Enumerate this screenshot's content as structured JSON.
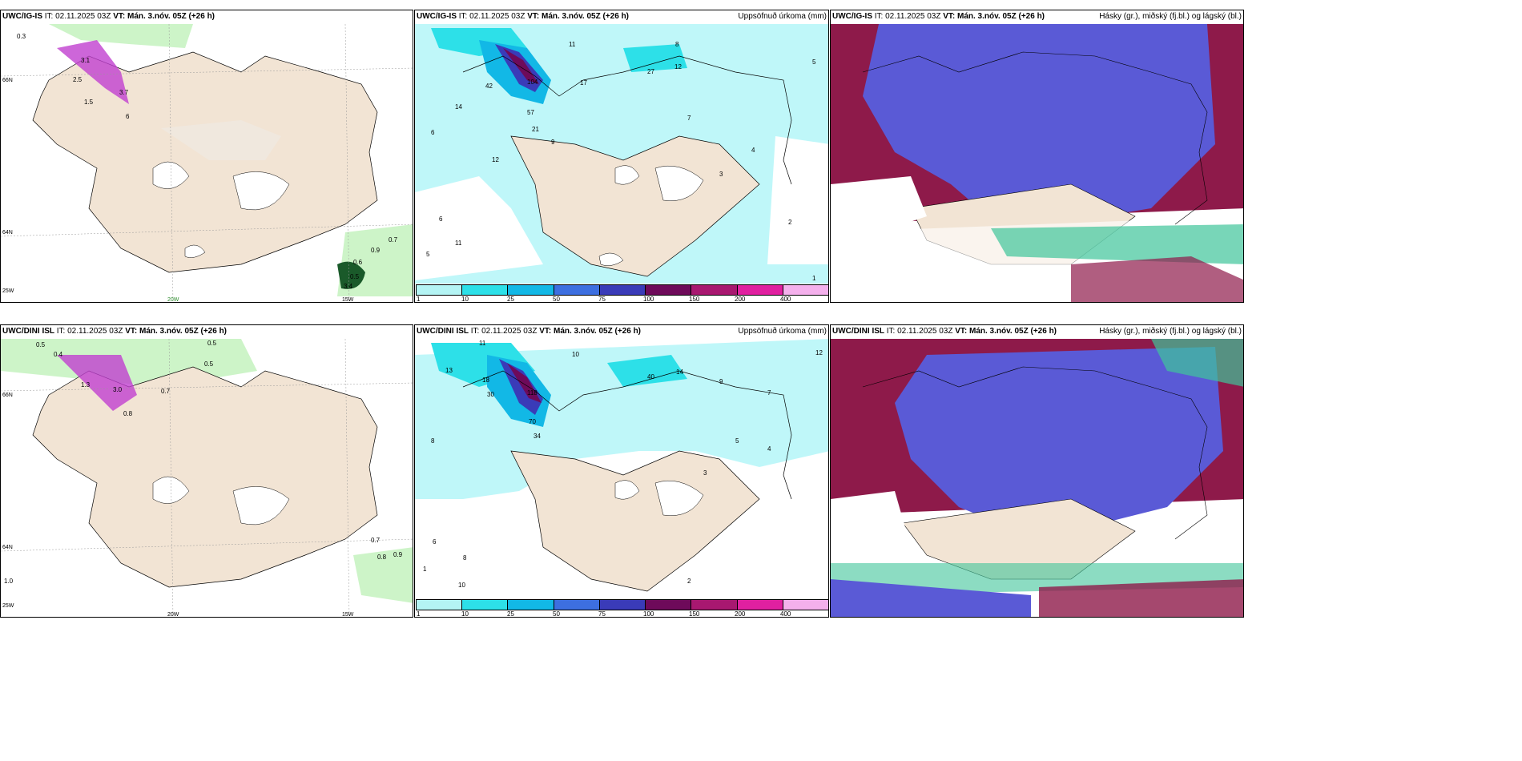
{
  "rows": [
    {
      "wind_panel": {
        "model": "UWC/IG-IS",
        "init": "IT: 02.11.2025 03Z",
        "valid": "VT: Mán. 3.nóv. 05Z (+26 h)",
        "labels": [
          "0.3",
          "3.1",
          "2.5",
          "3.7",
          "1.5",
          "6",
          "0.7",
          "0.9",
          "0.6",
          "0.5",
          "3.4"
        ],
        "lat_labels": [
          "66N",
          "64N",
          "25W"
        ],
        "lon_labels": [
          "20W",
          "15W"
        ]
      },
      "precip_panel": {
        "model": "UWC/IG-IS",
        "init": "IT: 02.11.2025 03Z",
        "valid": "VT: Mán. 3.nóv. 05Z (+26 h)",
        "title": "Uppsöfnuð úrkoma (mm)",
        "values": [
          "11",
          "8",
          "6",
          "5",
          "17",
          "42",
          "104",
          "57",
          "21",
          "27",
          "12",
          "9",
          "7",
          "4",
          "3",
          "2",
          "1",
          "5",
          "6",
          "14",
          "11",
          "12"
        ]
      },
      "type_panel": {
        "model": "UWC/IG-IS",
        "init": "IT: 02.11.2025 03Z",
        "valid": "VT: Mán. 3.nóv. 05Z (+26 h)",
        "title": "Hásky (gr.), miðský (fj.bl.) og lágský (bl.)"
      }
    },
    {
      "wind_panel": {
        "model": "UWC/DINI ISL",
        "init": "IT: 02.11.2025 03Z",
        "valid": "VT: Mán. 3.nóv. 05Z (+26 h)",
        "labels": [
          "0.5",
          "0.4",
          "1.3",
          "3.0",
          "0.5",
          "0.5",
          "0.7",
          "0.8",
          "0.7",
          "0.8",
          "0.9",
          "1.0"
        ],
        "lat_labels": [
          "66N",
          "64N",
          "25W"
        ],
        "lon_labels": [
          "20W",
          "15W"
        ]
      },
      "precip_panel": {
        "model": "UWC/DINI ISL",
        "init": "IT: 02.11.2025 03Z",
        "valid": "VT: Mán. 3.nóv. 05Z (+26 h)",
        "title": "Uppsöfnuð úrkoma (mm)",
        "values": [
          "11",
          "13",
          "10",
          "8",
          "18",
          "30",
          "118",
          "70",
          "34",
          "40",
          "14",
          "12",
          "9",
          "7",
          "5",
          "4",
          "3",
          "2",
          "1",
          "6",
          "8",
          "10"
        ]
      },
      "type_panel": {
        "model": "UWC/DINI ISL",
        "init": "IT: 02.11.2025 03Z",
        "valid": "VT: Mán. 3.nóv. 05Z (+26 h)",
        "title": "Hásky (gr.), miðský (fj.bl.) og lágský (bl.)"
      }
    }
  ],
  "colorbar": {
    "ticks": [
      "1",
      "10",
      "25",
      "50",
      "75",
      "100",
      "150",
      "200",
      "400"
    ],
    "colors": [
      "#b4f4f4",
      "#2de0e8",
      "#12b8e6",
      "#3d6fe0",
      "#3a3bb8",
      "#6e0a5a",
      "#a81870",
      "#e020a0",
      "#f4b0ec"
    ]
  },
  "colors": {
    "land": "#f2e4d4",
    "sea": "#ffffff",
    "precip_light": "#bff7f9",
    "green": "#b8f0b0",
    "purple": "#b040c0",
    "blue_cloud": "#5a5ad6",
    "dark_red": "#8e1a4a"
  }
}
